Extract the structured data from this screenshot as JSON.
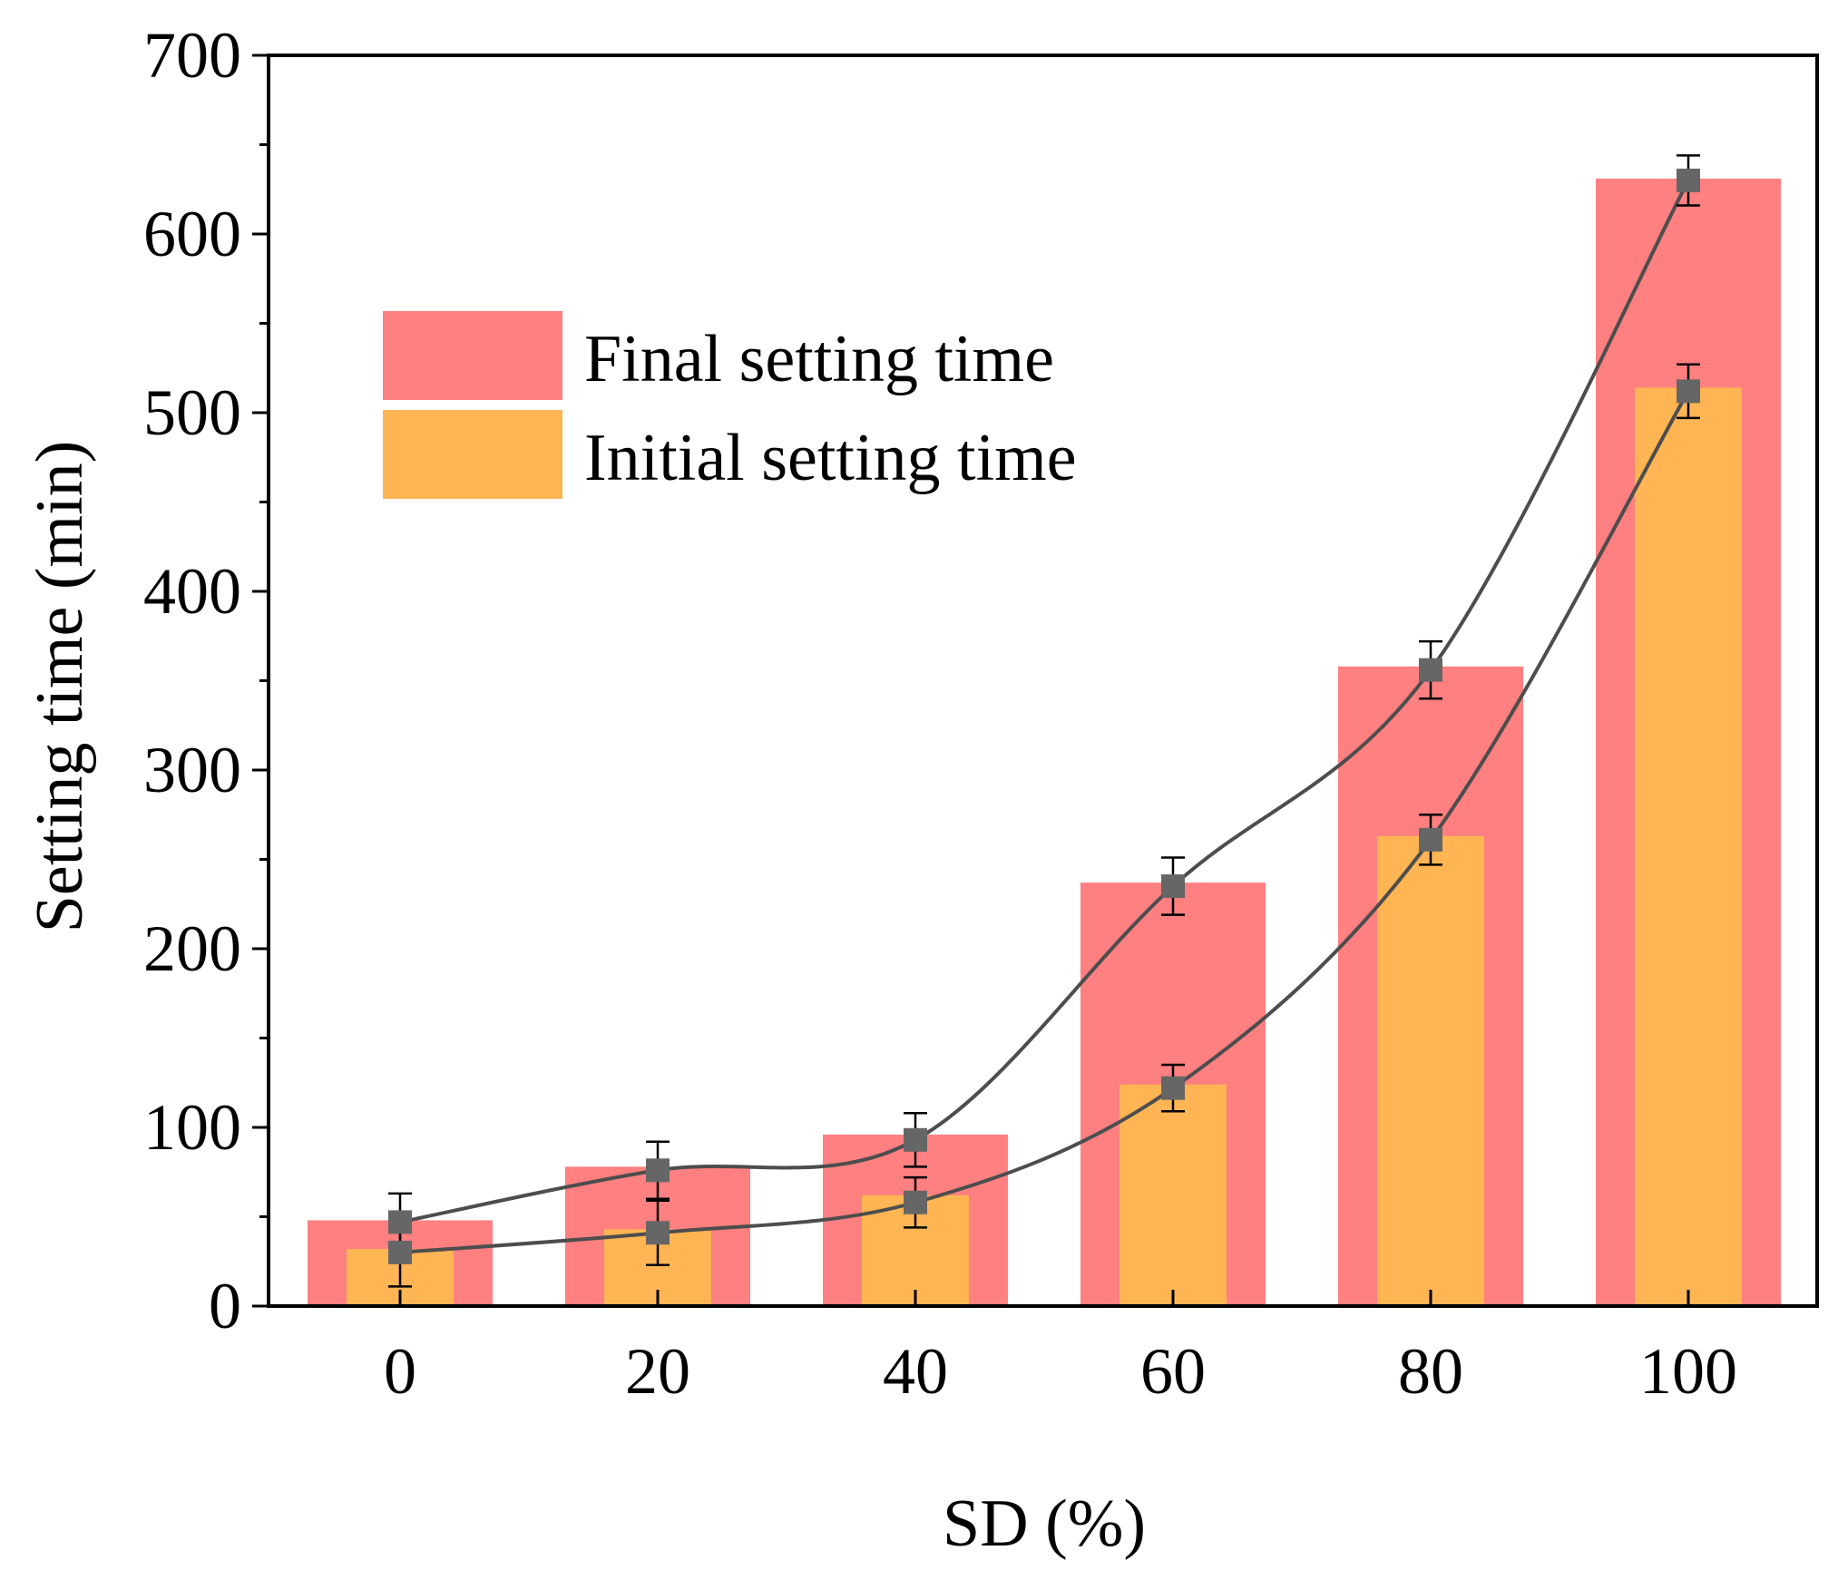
{
  "chart_data": {
    "type": "bar",
    "xlabel": "SD (%)",
    "ylabel": "Setting time (min)",
    "categories": [
      "0",
      "20",
      "40",
      "60",
      "80",
      "100"
    ],
    "ylim": [
      0,
      700
    ],
    "yticks": [
      "0",
      "100",
      "200",
      "300",
      "400",
      "500",
      "600",
      "700"
    ],
    "y_minor_step": 50,
    "legend_position": "top-left",
    "series": [
      {
        "name": "Final setting time",
        "color": "#FF8080",
        "bar_values": [
          48,
          78,
          96,
          237,
          358,
          631
        ],
        "line_values": [
          47,
          76,
          93,
          235,
          356,
          630
        ],
        "errors": [
          16,
          16,
          15,
          16,
          16,
          14
        ]
      },
      {
        "name": "Initial setting time",
        "color": "#FFB554",
        "bar_values": [
          32,
          43,
          62,
          124,
          263,
          514
        ],
        "line_values": [
          30,
          41,
          58,
          122,
          261,
          512
        ],
        "errors": [
          19,
          18,
          14,
          13,
          14,
          15
        ]
      }
    ],
    "line_color": "#4D4D4D",
    "marker_color": "#666666"
  }
}
